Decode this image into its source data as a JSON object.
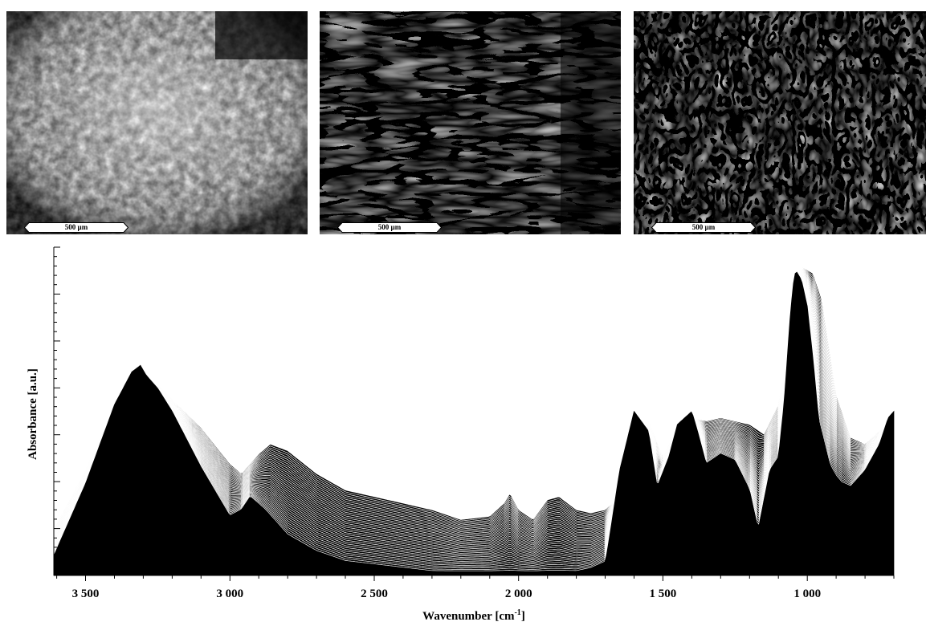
{
  "micrographs": [
    {
      "scale_label": "500 µm",
      "tone": "gray"
    },
    {
      "scale_label": "500 µm",
      "tone": "bw-radial"
    },
    {
      "scale_label": "500 µm",
      "tone": "bw-fine"
    }
  ],
  "chart_data": {
    "type": "area",
    "title": "",
    "xlabel": "Wavenumber [cm",
    "xlabel_sup": "-1",
    "xlabel_tail": "]",
    "ylabel": "Absorbance [a.u.]",
    "x_reversed": true,
    "xlim": [
      3610,
      700
    ],
    "ylim": [
      0,
      1
    ],
    "xticks": [
      {
        "value": 3500,
        "label": "3 500"
      },
      {
        "value": 3000,
        "label": "3 000"
      },
      {
        "value": 2500,
        "label": "2 500"
      },
      {
        "value": 2000,
        "label": "2 000"
      },
      {
        "value": 1500,
        "label": "1 500"
      },
      {
        "value": 1000,
        "label": "1 000"
      }
    ],
    "y_tick_labels": false,
    "series_count": 40,
    "waterfall": true,
    "base_spectrum": {
      "x": [
        3610,
        3500,
        3400,
        3340,
        3310,
        3290,
        3250,
        3200,
        3100,
        3000,
        2960,
        2930,
        2880,
        2800,
        2700,
        2600,
        2500,
        2400,
        2300,
        2250,
        2200,
        2100,
        2050,
        2000,
        1950,
        1900,
        1850,
        1800,
        1750,
        1700,
        1690,
        1650,
        1600,
        1550,
        1520,
        1480,
        1450,
        1400,
        1380,
        1350,
        1300,
        1250,
        1200,
        1170,
        1130,
        1100,
        1080,
        1060,
        1050,
        1040,
        1020,
        1000,
        980,
        960,
        920,
        900,
        880,
        850,
        800,
        750,
        720,
        700
      ],
      "y": [
        0.06,
        0.28,
        0.52,
        0.62,
        0.64,
        0.61,
        0.57,
        0.5,
        0.33,
        0.18,
        0.2,
        0.24,
        0.2,
        0.12,
        0.07,
        0.04,
        0.03,
        0.02,
        0.01,
        0.01,
        0.01,
        0.01,
        0.01,
        0.01,
        0.01,
        0.01,
        0.01,
        0.01,
        0.02,
        0.04,
        0.09,
        0.32,
        0.5,
        0.44,
        0.27,
        0.36,
        0.46,
        0.5,
        0.44,
        0.34,
        0.37,
        0.35,
        0.26,
        0.14,
        0.32,
        0.36,
        0.53,
        0.78,
        0.88,
        0.93,
        0.9,
        0.82,
        0.66,
        0.47,
        0.33,
        0.3,
        0.28,
        0.27,
        0.32,
        0.4,
        0.48,
        0.5
      ]
    },
    "top_spectrum": {
      "x": [
        3610,
        3500,
        3400,
        3340,
        3310,
        3250,
        3100,
        3000,
        2960,
        2900,
        2860,
        2800,
        2700,
        2600,
        2500,
        2300,
        2200,
        2100,
        2050,
        2030,
        2000,
        1950,
        1900,
        1860,
        1800,
        1750,
        1700,
        1650,
        1600,
        1550,
        1500,
        1450,
        1400,
        1350,
        1300,
        1250,
        1200,
        1150,
        1100,
        1050,
        1020,
        980,
        950,
        900,
        850,
        800,
        750,
        700
      ],
      "y": [
        0.14,
        0.32,
        0.52,
        0.6,
        0.6,
        0.58,
        0.45,
        0.34,
        0.31,
        0.37,
        0.4,
        0.38,
        0.31,
        0.26,
        0.24,
        0.2,
        0.17,
        0.18,
        0.22,
        0.25,
        0.2,
        0.17,
        0.23,
        0.24,
        0.2,
        0.19,
        0.2,
        0.24,
        0.45,
        0.47,
        0.36,
        0.45,
        0.48,
        0.47,
        0.48,
        0.47,
        0.46,
        0.43,
        0.52,
        0.77,
        0.94,
        0.92,
        0.84,
        0.55,
        0.42,
        0.4,
        0.44,
        0.48
      ]
    }
  }
}
